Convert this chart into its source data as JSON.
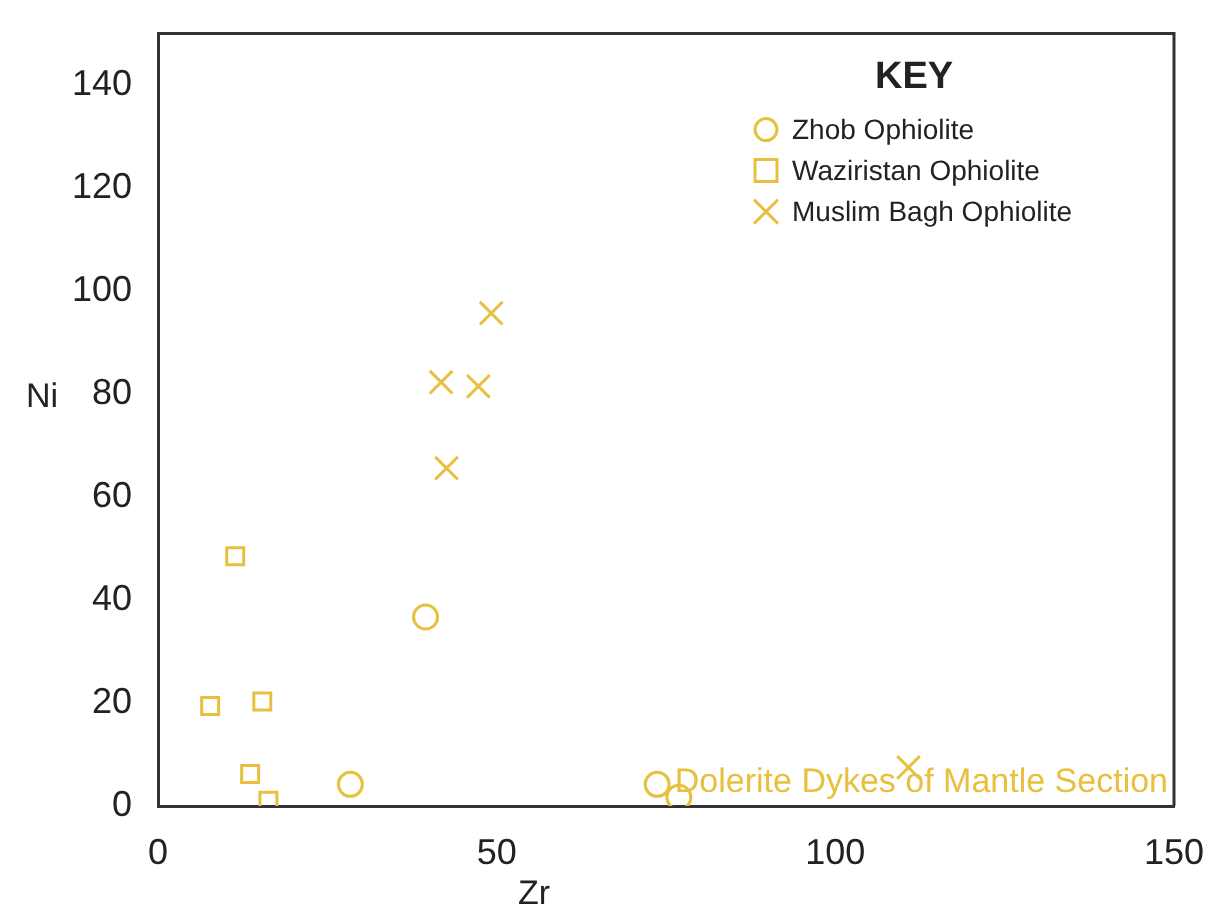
{
  "chart_data": {
    "type": "scatter",
    "xlabel": "Zr",
    "ylabel": "Ni",
    "legend_title": "KEY",
    "legend": "top right",
    "grid": false,
    "xlim": [
      0,
      150
    ],
    "xticks": [
      0,
      50,
      100,
      150
    ],
    "ylim": [
      0,
      150
    ],
    "yticks": [
      0,
      20,
      40,
      60,
      80,
      100,
      120,
      140
    ],
    "annotations": [
      "Dolerite Dykes of Mantle Section"
    ],
    "series": [
      {
        "name": "Zhob Ophiolite",
        "color": "#e8c040",
        "marker": "circle",
        "x": [
          39.5,
          28.4,
          73.7,
          76.9
        ],
        "values": [
          36.7,
          4.2,
          4.2,
          1.7
        ]
      },
      {
        "name": "Waziristan Ophiolite",
        "color": "#e8c040",
        "marker": "square",
        "x": [
          11.4,
          7.7,
          15.4,
          13.6,
          16.3
        ],
        "values": [
          48.5,
          19.4,
          20.3,
          6.2,
          1
        ]
      },
      {
        "name": "Muslim Bagh Ophiolite",
        "color": "#e8c040",
        "marker": "cross",
        "x": [
          49.2,
          41.8,
          47.3,
          42.6,
          110.8
        ],
        "values": [
          95.7,
          82.3,
          81.5,
          65.6,
          7.5
        ]
      }
    ]
  }
}
